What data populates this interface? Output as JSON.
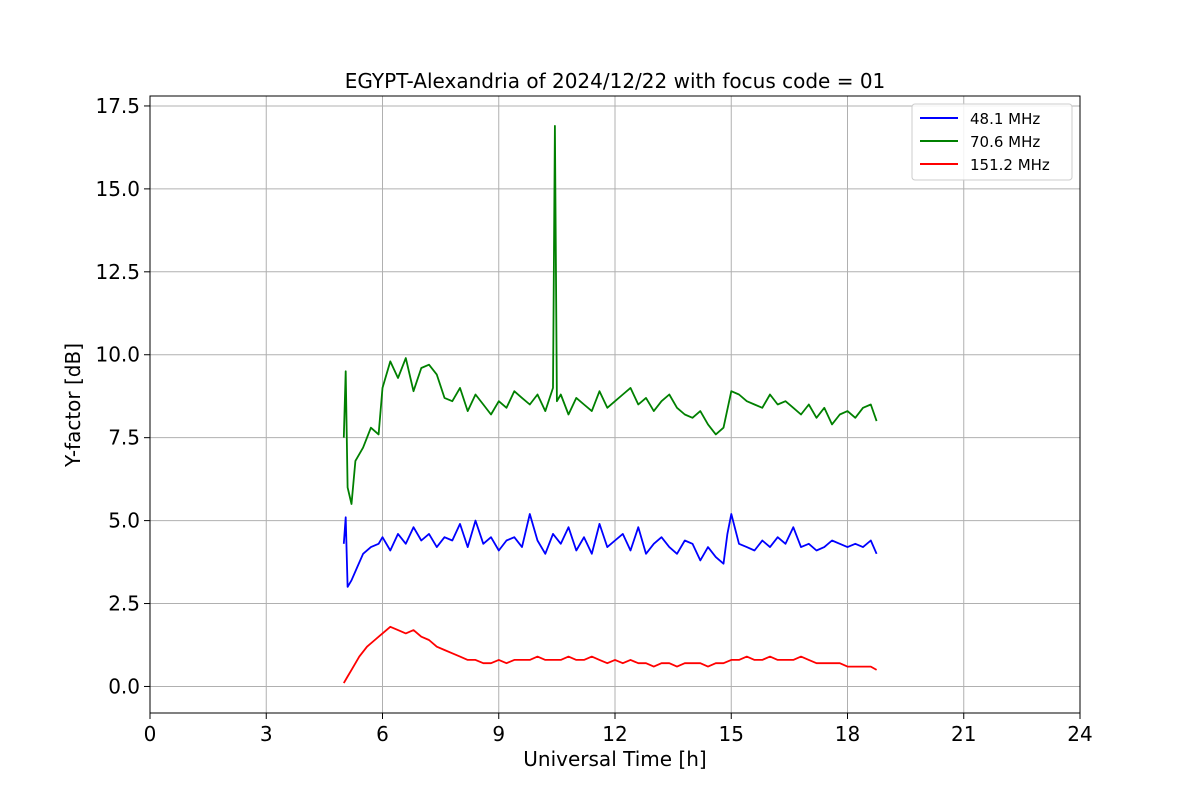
{
  "chart_data": {
    "type": "line",
    "title": "EGYPT-Alexandria of 2024/12/22 with focus code = 01",
    "xlabel": "Universal Time [h]",
    "ylabel": "Y-factor [dB]",
    "xlim": [
      0,
      24
    ],
    "ylim": [
      -0.8,
      17.8
    ],
    "xticks": [
      "0",
      "3",
      "6",
      "9",
      "12",
      "15",
      "18",
      "21",
      "24"
    ],
    "yticks": [
      "0.0",
      "2.5",
      "5.0",
      "7.5",
      "10.0",
      "12.5",
      "15.0",
      "17.5"
    ],
    "grid": true,
    "legend_position": "upper right",
    "series": [
      {
        "name": "48.1 MHz",
        "color": "#0000ff",
        "x": [
          5.0,
          5.05,
          5.1,
          5.2,
          5.35,
          5.5,
          5.7,
          5.9,
          6.0,
          6.2,
          6.4,
          6.6,
          6.8,
          7.0,
          7.2,
          7.4,
          7.6,
          7.8,
          8.0,
          8.2,
          8.4,
          8.6,
          8.8,
          9.0,
          9.2,
          9.4,
          9.6,
          9.8,
          10.0,
          10.2,
          10.4,
          10.6,
          10.8,
          11.0,
          11.2,
          11.4,
          11.6,
          11.8,
          12.0,
          12.2,
          12.4,
          12.6,
          12.8,
          13.0,
          13.2,
          13.4,
          13.6,
          13.8,
          14.0,
          14.2,
          14.4,
          14.6,
          14.8,
          14.9,
          15.0,
          15.2,
          15.4,
          15.6,
          15.8,
          16.0,
          16.2,
          16.4,
          16.6,
          16.8,
          17.0,
          17.2,
          17.4,
          17.6,
          17.8,
          18.0,
          18.2,
          18.4,
          18.6,
          18.75
        ],
        "y": [
          4.3,
          5.1,
          3.0,
          3.2,
          3.6,
          4.0,
          4.2,
          4.3,
          4.5,
          4.1,
          4.6,
          4.3,
          4.8,
          4.4,
          4.6,
          4.2,
          4.5,
          4.4,
          4.9,
          4.2,
          5.0,
          4.3,
          4.5,
          4.1,
          4.4,
          4.5,
          4.2,
          5.2,
          4.4,
          4.0,
          4.6,
          4.3,
          4.8,
          4.1,
          4.5,
          4.0,
          4.9,
          4.2,
          4.4,
          4.6,
          4.1,
          4.8,
          4.0,
          4.3,
          4.5,
          4.2,
          4.0,
          4.4,
          4.3,
          3.8,
          4.2,
          3.9,
          3.7,
          4.6,
          5.2,
          4.3,
          4.2,
          4.1,
          4.4,
          4.2,
          4.5,
          4.3,
          4.8,
          4.2,
          4.3,
          4.1,
          4.2,
          4.4,
          4.3,
          4.2,
          4.3,
          4.2,
          4.4,
          4.0
        ]
      },
      {
        "name": "70.6 MHz",
        "color": "#008000",
        "x": [
          5.0,
          5.05,
          5.1,
          5.2,
          5.3,
          5.5,
          5.7,
          5.9,
          6.0,
          6.2,
          6.4,
          6.6,
          6.8,
          7.0,
          7.2,
          7.4,
          7.6,
          7.8,
          8.0,
          8.2,
          8.4,
          8.6,
          8.8,
          9.0,
          9.2,
          9.4,
          9.6,
          9.8,
          10.0,
          10.2,
          10.4,
          10.45,
          10.5,
          10.6,
          10.8,
          11.0,
          11.2,
          11.4,
          11.6,
          11.8,
          12.0,
          12.2,
          12.4,
          12.6,
          12.8,
          13.0,
          13.2,
          13.4,
          13.6,
          13.8,
          14.0,
          14.2,
          14.4,
          14.6,
          14.8,
          15.0,
          15.2,
          15.4,
          15.6,
          15.8,
          16.0,
          16.2,
          16.4,
          16.6,
          16.8,
          17.0,
          17.2,
          17.4,
          17.6,
          17.8,
          18.0,
          18.2,
          18.4,
          18.6,
          18.75
        ],
        "y": [
          7.5,
          9.5,
          6.0,
          5.5,
          6.8,
          7.2,
          7.8,
          7.6,
          9.0,
          9.8,
          9.3,
          9.9,
          8.9,
          9.6,
          9.7,
          9.4,
          8.7,
          8.6,
          9.0,
          8.3,
          8.8,
          8.5,
          8.2,
          8.6,
          8.4,
          8.9,
          8.7,
          8.5,
          8.8,
          8.3,
          9.0,
          16.9,
          8.6,
          8.8,
          8.2,
          8.7,
          8.5,
          8.3,
          8.9,
          8.4,
          8.6,
          8.8,
          9.0,
          8.5,
          8.7,
          8.3,
          8.6,
          8.8,
          8.4,
          8.2,
          8.1,
          8.3,
          7.9,
          7.6,
          7.8,
          8.9,
          8.8,
          8.6,
          8.5,
          8.4,
          8.8,
          8.5,
          8.6,
          8.4,
          8.2,
          8.5,
          8.1,
          8.4,
          7.9,
          8.2,
          8.3,
          8.1,
          8.4,
          8.5,
          8.0
        ]
      },
      {
        "name": "151.2 MHz",
        "color": "#ff0000",
        "x": [
          5.0,
          5.1,
          5.2,
          5.4,
          5.6,
          5.8,
          6.0,
          6.2,
          6.4,
          6.6,
          6.8,
          7.0,
          7.2,
          7.4,
          7.6,
          7.8,
          8.0,
          8.2,
          8.4,
          8.6,
          8.8,
          9.0,
          9.2,
          9.4,
          9.6,
          9.8,
          10.0,
          10.2,
          10.4,
          10.6,
          10.8,
          11.0,
          11.2,
          11.4,
          11.6,
          11.8,
          12.0,
          12.2,
          12.4,
          12.6,
          12.8,
          13.0,
          13.2,
          13.4,
          13.6,
          13.8,
          14.0,
          14.2,
          14.4,
          14.6,
          14.8,
          15.0,
          15.2,
          15.4,
          15.6,
          15.8,
          16.0,
          16.2,
          16.4,
          16.6,
          16.8,
          17.0,
          17.2,
          17.4,
          17.6,
          17.8,
          18.0,
          18.2,
          18.4,
          18.6,
          18.75
        ],
        "y": [
          0.1,
          0.3,
          0.5,
          0.9,
          1.2,
          1.4,
          1.6,
          1.8,
          1.7,
          1.6,
          1.7,
          1.5,
          1.4,
          1.2,
          1.1,
          1.0,
          0.9,
          0.8,
          0.8,
          0.7,
          0.7,
          0.8,
          0.7,
          0.8,
          0.8,
          0.8,
          0.9,
          0.8,
          0.8,
          0.8,
          0.9,
          0.8,
          0.8,
          0.9,
          0.8,
          0.7,
          0.8,
          0.7,
          0.8,
          0.7,
          0.7,
          0.6,
          0.7,
          0.7,
          0.6,
          0.7,
          0.7,
          0.7,
          0.6,
          0.7,
          0.7,
          0.8,
          0.8,
          0.9,
          0.8,
          0.8,
          0.9,
          0.8,
          0.8,
          0.8,
          0.9,
          0.8,
          0.7,
          0.7,
          0.7,
          0.7,
          0.6,
          0.6,
          0.6,
          0.6,
          0.5
        ]
      }
    ]
  }
}
